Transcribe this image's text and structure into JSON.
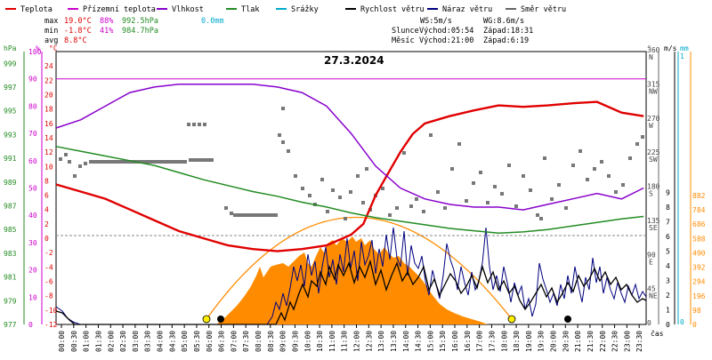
{
  "legend": [
    {
      "label": "Teplota",
      "color": "#e00000"
    },
    {
      "label": "Přízemní teplota",
      "color": "#cc00cc"
    },
    {
      "label": "Vlhkost",
      "color": "#8800cc"
    },
    {
      "label": "Tlak",
      "color": "#228b22"
    },
    {
      "label": "Srážky",
      "color": "#00aacc"
    },
    {
      "label": "Rychlost větru",
      "color": "#000000"
    },
    {
      "label": "Náraz větru",
      "color": "#000080"
    },
    {
      "label": "Směr větru",
      "color": "#666666"
    }
  ],
  "stats": {
    "max_label": "max",
    "max_temp": "19.0°C",
    "max_hum": "88%",
    "max_press": "992.5hPa",
    "min_label": "min",
    "min_temp": "-1.8°C",
    "min_hum": "41%",
    "min_press": "984.7hPa",
    "avg_label": "avg",
    "avg_temp": "8.8°C",
    "precip": "0.0mm"
  },
  "wind": {
    "ws": "WS:5m/s",
    "wg": "WG:8.6m/s"
  },
  "astro": {
    "sun_label": "Slunce",
    "sunrise": "Východ:05:54",
    "sunset": "Západ:18:31",
    "moon_label": "Měsíc",
    "moonrise": "Východ:21:00",
    "moonset": "Západ:6:19"
  },
  "chart_data": {
    "type": "line",
    "title": "27.3.2024",
    "xlabel": "čas",
    "x_ticks": [
      "00:00",
      "00:30",
      "01:00",
      "01:30",
      "02:00",
      "02:30",
      "03:00",
      "03:30",
      "04:00",
      "04:30",
      "05:00",
      "05:30",
      "06:00",
      "06:30",
      "07:00",
      "07:30",
      "08:00",
      "08:30",
      "09:00",
      "09:30",
      "10:00",
      "10:30",
      "11:00",
      "11:30",
      "12:00",
      "12:30",
      "13:00",
      "13:30",
      "14:00",
      "14:30",
      "15:00",
      "15:30",
      "16:00",
      "16:30",
      "17:00",
      "17:30",
      "18:00",
      "18:30",
      "19:00",
      "19:30",
      "20:00",
      "20:30",
      "21:00",
      "21:30",
      "22:00",
      "22:30",
      "23:00",
      "23:30"
    ],
    "axes": {
      "pressure": {
        "label": "hPa",
        "color": "#228b22",
        "range": [
          977,
          1000
        ],
        "ticks": [
          999,
          997,
          995,
          993,
          991,
          989,
          987,
          985,
          983,
          981,
          979,
          977
        ]
      },
      "humidity": {
        "label": "%",
        "color": "#cc00cc",
        "range": [
          0,
          100
        ],
        "ticks": [
          100,
          90,
          80,
          70,
          60,
          50,
          40,
          30,
          20,
          10,
          0
        ]
      },
      "temperature": {
        "label": "°C",
        "color": "#e00000",
        "range": [
          -12,
          26
        ],
        "ticks": [
          24,
          22,
          20,
          18,
          16,
          14,
          12,
          10,
          8,
          6,
          4,
          2,
          0,
          -2,
          -4,
          -6,
          -8,
          -10,
          -12
        ]
      },
      "direction": {
        "label": "°",
        "color": "#666666",
        "range": [
          0,
          360
        ],
        "ticks": [
          {
            "v": 360,
            "deg": "360",
            "dir": "N"
          },
          {
            "v": 315,
            "deg": "315",
            "dir": "NW"
          },
          {
            "v": 270,
            "deg": "270",
            "dir": "W"
          },
          {
            "v": 225,
            "deg": "225",
            "dir": "SW"
          },
          {
            "v": 180,
            "deg": "180",
            "dir": "S"
          },
          {
            "v": 135,
            "deg": "135",
            "dir": "SE"
          },
          {
            "v": 90,
            "deg": "90",
            "dir": "E"
          },
          {
            "v": 45,
            "deg": "45",
            "dir": "NE"
          },
          {
            "v": 0,
            "deg": "0",
            "dir": ""
          }
        ]
      },
      "wind_speed": {
        "label": "m/s",
        "color": "#000000",
        "range": [
          0,
          9
        ],
        "ticks": [
          9,
          8,
          7,
          6,
          5,
          4,
          3,
          2,
          1,
          0
        ]
      },
      "precip": {
        "label": "mm",
        "color": "#00aacc",
        "ticks": [
          1,
          0
        ]
      },
      "radiation": {
        "label": "",
        "color": "#ff8c00",
        "range": [
          0,
          900
        ],
        "ticks": [
          882,
          784,
          686,
          588,
          490,
          392,
          294,
          196,
          98,
          0
        ]
      }
    },
    "ref_line_humidity": 90,
    "series": [
      {
        "name": "Teplota",
        "axis": "temperature",
        "color": "#e00000",
        "x": [
          0,
          1,
          2,
          3,
          4,
          5,
          6,
          7,
          8,
          9,
          10,
          11,
          12,
          12.5,
          13,
          13.5,
          14,
          14.5,
          15,
          16,
          17,
          18,
          19,
          20,
          21,
          22,
          23,
          23.9
        ],
        "y": [
          7.5,
          6.5,
          5.5,
          4.0,
          2.5,
          1.0,
          0.0,
          -1.0,
          -1.5,
          -1.8,
          -1.5,
          -1.0,
          0.5,
          2.0,
          6.0,
          9.0,
          12.0,
          14.5,
          16.0,
          17.0,
          17.8,
          18.5,
          18.3,
          18.5,
          18.8,
          19.0,
          17.5,
          17.0
        ]
      },
      {
        "name": "Vlhkost",
        "axis": "humidity",
        "color": "#8800cc",
        "x": [
          0,
          1,
          2,
          3,
          4,
          5,
          6,
          7,
          8,
          9,
          10,
          11,
          12,
          13,
          14,
          15,
          16,
          17,
          18,
          19,
          20,
          21,
          22,
          23,
          23.9
        ],
        "y": [
          72,
          75,
          80,
          85,
          87,
          88,
          88,
          88,
          88,
          87,
          85,
          80,
          70,
          58,
          50,
          46,
          44,
          43,
          43,
          42,
          44,
          46,
          48,
          46,
          50
        ]
      },
      {
        "name": "Tlak",
        "axis": "pressure",
        "color": "#228b22",
        "x": [
          0,
          1,
          2,
          3,
          4,
          5,
          6,
          7,
          8,
          9,
          10,
          11,
          12,
          13,
          14,
          15,
          16,
          17,
          18,
          19,
          20,
          21,
          22,
          23,
          23.9
        ],
        "y": [
          992.0,
          991.6,
          991.2,
          990.8,
          990.4,
          989.8,
          989.2,
          988.7,
          988.2,
          987.8,
          987.3,
          986.9,
          986.4,
          986.0,
          985.7,
          985.4,
          985.1,
          984.9,
          984.7,
          984.8,
          985.0,
          985.3,
          985.6,
          985.9,
          986.1
        ]
      }
    ]
  }
}
